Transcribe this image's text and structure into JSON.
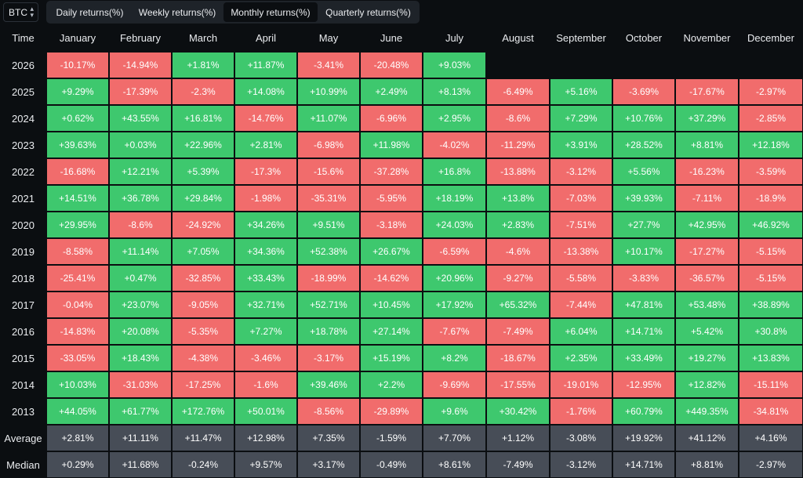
{
  "asset": "BTC",
  "tabs": [
    "Daily returns(%)",
    "Weekly returns(%)",
    "Monthly returns(%)",
    "Quarterly returns(%)"
  ],
  "active_tab": 2,
  "table": {
    "corner": "Time",
    "months": [
      "January",
      "February",
      "March",
      "April",
      "May",
      "June",
      "July",
      "August",
      "September",
      "October",
      "November",
      "December"
    ],
    "rows": [
      {
        "year": "2026",
        "values": [
          "-10.17%",
          "-14.94%",
          "+1.81%",
          "+11.87%",
          "-3.41%",
          "-20.48%",
          "+9.03%",
          "",
          "",
          "",
          "",
          ""
        ]
      },
      {
        "year": "2025",
        "values": [
          "+9.29%",
          "-17.39%",
          "-2.3%",
          "+14.08%",
          "+10.99%",
          "+2.49%",
          "+8.13%",
          "-6.49%",
          "+5.16%",
          "-3.69%",
          "-17.67%",
          "-2.97%"
        ]
      },
      {
        "year": "2024",
        "values": [
          "+0.62%",
          "+43.55%",
          "+16.81%",
          "-14.76%",
          "+11.07%",
          "-6.96%",
          "+2.95%",
          "-8.6%",
          "+7.29%",
          "+10.76%",
          "+37.29%",
          "-2.85%"
        ]
      },
      {
        "year": "2023",
        "values": [
          "+39.63%",
          "+0.03%",
          "+22.96%",
          "+2.81%",
          "-6.98%",
          "+11.98%",
          "-4.02%",
          "-11.29%",
          "+3.91%",
          "+28.52%",
          "+8.81%",
          "+12.18%"
        ]
      },
      {
        "year": "2022",
        "values": [
          "-16.68%",
          "+12.21%",
          "+5.39%",
          "-17.3%",
          "-15.6%",
          "-37.28%",
          "+16.8%",
          "-13.88%",
          "-3.12%",
          "+5.56%",
          "-16.23%",
          "-3.59%"
        ]
      },
      {
        "year": "2021",
        "values": [
          "+14.51%",
          "+36.78%",
          "+29.84%",
          "-1.98%",
          "-35.31%",
          "-5.95%",
          "+18.19%",
          "+13.8%",
          "-7.03%",
          "+39.93%",
          "-7.11%",
          "-18.9%"
        ]
      },
      {
        "year": "2020",
        "values": [
          "+29.95%",
          "-8.6%",
          "-24.92%",
          "+34.26%",
          "+9.51%",
          "-3.18%",
          "+24.03%",
          "+2.83%",
          "-7.51%",
          "+27.7%",
          "+42.95%",
          "+46.92%"
        ]
      },
      {
        "year": "2019",
        "values": [
          "-8.58%",
          "+11.14%",
          "+7.05%",
          "+34.36%",
          "+52.38%",
          "+26.67%",
          "-6.59%",
          "-4.6%",
          "-13.38%",
          "+10.17%",
          "-17.27%",
          "-5.15%"
        ]
      },
      {
        "year": "2018",
        "values": [
          "-25.41%",
          "+0.47%",
          "-32.85%",
          "+33.43%",
          "-18.99%",
          "-14.62%",
          "+20.96%",
          "-9.27%",
          "-5.58%",
          "-3.83%",
          "-36.57%",
          "-5.15%"
        ]
      },
      {
        "year": "2017",
        "values": [
          "-0.04%",
          "+23.07%",
          "-9.05%",
          "+32.71%",
          "+52.71%",
          "+10.45%",
          "+17.92%",
          "+65.32%",
          "-7.44%",
          "+47.81%",
          "+53.48%",
          "+38.89%"
        ]
      },
      {
        "year": "2016",
        "values": [
          "-14.83%",
          "+20.08%",
          "-5.35%",
          "+7.27%",
          "+18.78%",
          "+27.14%",
          "-7.67%",
          "-7.49%",
          "+6.04%",
          "+14.71%",
          "+5.42%",
          "+30.8%"
        ]
      },
      {
        "year": "2015",
        "values": [
          "-33.05%",
          "+18.43%",
          "-4.38%",
          "-3.46%",
          "-3.17%",
          "+15.19%",
          "+8.2%",
          "-18.67%",
          "+2.35%",
          "+33.49%",
          "+19.27%",
          "+13.83%"
        ]
      },
      {
        "year": "2014",
        "values": [
          "+10.03%",
          "-31.03%",
          "-17.25%",
          "-1.6%",
          "+39.46%",
          "+2.2%",
          "-9.69%",
          "-17.55%",
          "-19.01%",
          "-12.95%",
          "+12.82%",
          "-15.11%"
        ]
      },
      {
        "year": "2013",
        "values": [
          "+44.05%",
          "+61.77%",
          "+172.76%",
          "+50.01%",
          "-8.56%",
          "-29.89%",
          "+9.6%",
          "+30.42%",
          "-1.76%",
          "+60.79%",
          "+449.35%",
          "-34.81%"
        ]
      }
    ],
    "stats": [
      {
        "label": "Average",
        "values": [
          "+2.81%",
          "+11.11%",
          "+11.47%",
          "+12.98%",
          "+7.35%",
          "-1.59%",
          "+7.70%",
          "+1.12%",
          "-3.08%",
          "+19.92%",
          "+41.12%",
          "+4.16%"
        ]
      },
      {
        "label": "Median",
        "values": [
          "+0.29%",
          "+11.68%",
          "-0.24%",
          "+9.57%",
          "+3.17%",
          "-0.49%",
          "+8.61%",
          "-7.49%",
          "-3.12%",
          "+14.71%",
          "+8.81%",
          "-2.97%"
        ]
      }
    ]
  }
}
